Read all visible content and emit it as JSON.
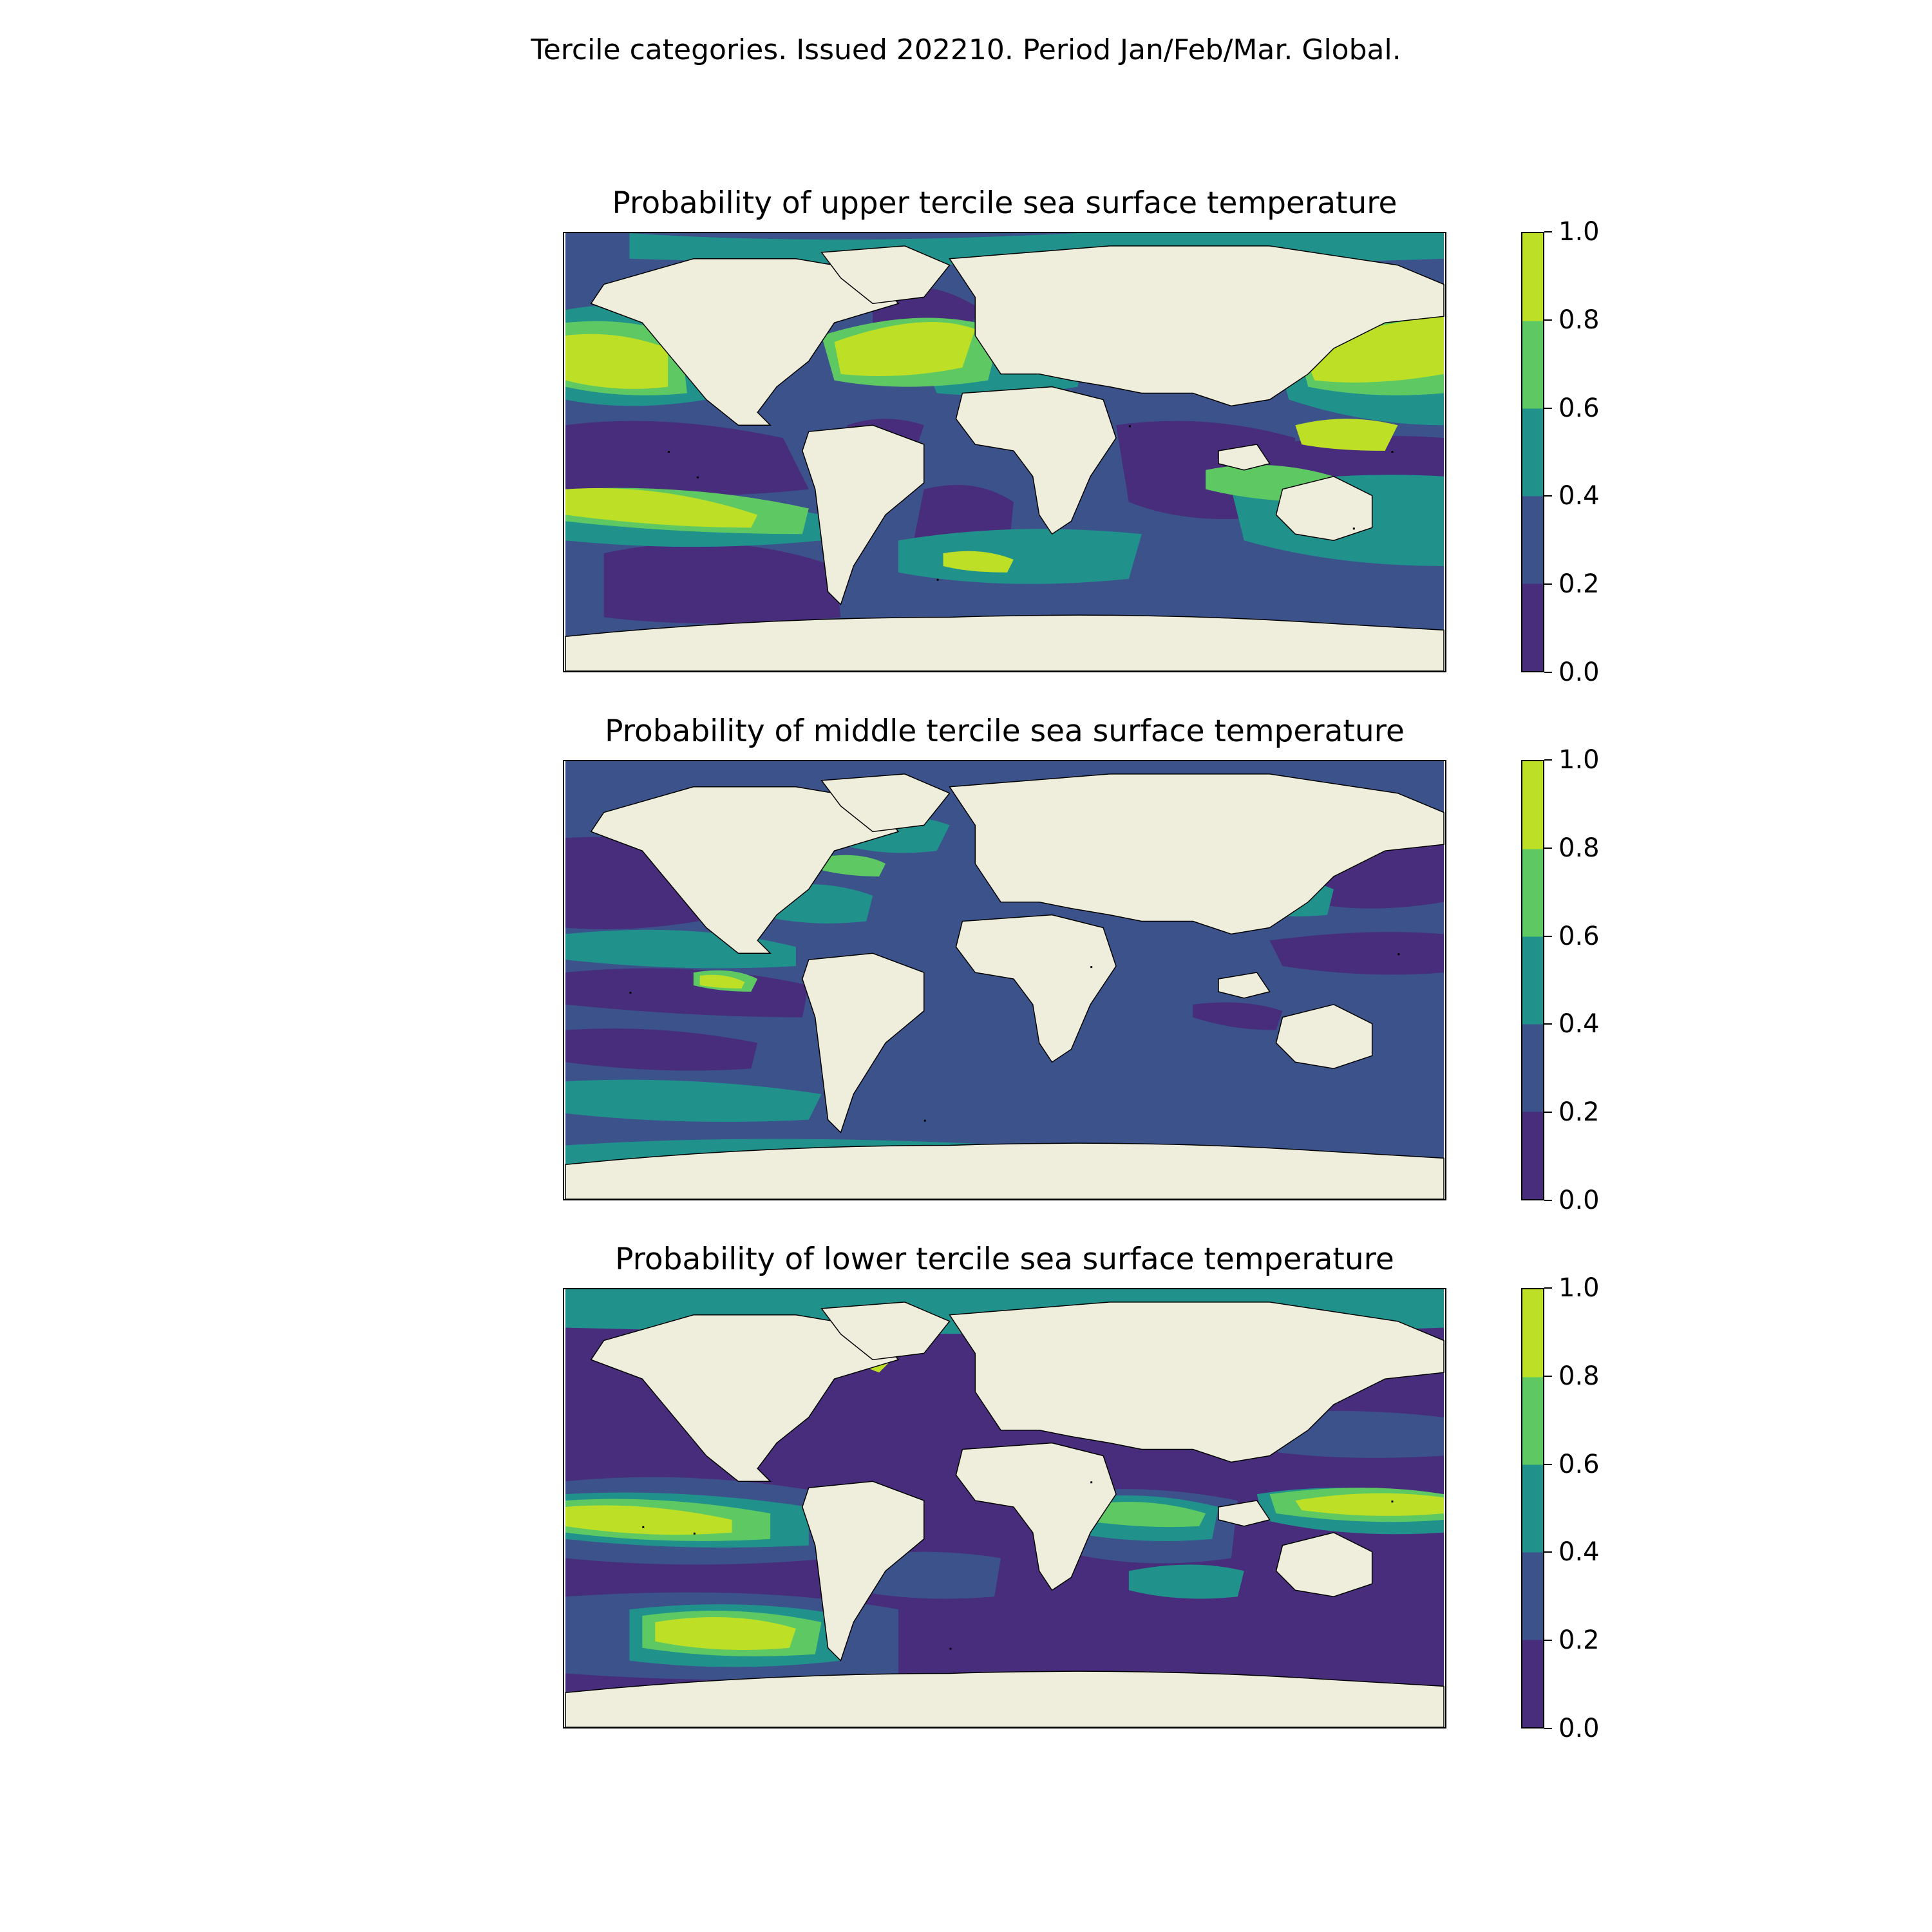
{
  "suptitle": "Tercile categories. Issued 202210. Period Jan/Feb/Mar. Global.",
  "colorbar": {
    "ticks": [
      "0.0",
      "0.2",
      "0.4",
      "0.6",
      "0.8",
      "1.0"
    ],
    "levels": [
      0.0,
      0.2,
      0.4,
      0.6,
      0.8,
      1.0
    ],
    "colors": [
      "#472d7b",
      "#3b528b",
      "#21918c",
      "#5ec962",
      "#bddf26"
    ]
  },
  "colors": {
    "land": "#efeedd",
    "coast": "#000000"
  },
  "panels": [
    {
      "id": "upper",
      "title": "Probability of upper tercile sea surface temperature"
    },
    {
      "id": "middle",
      "title": "Probability of middle tercile sea surface temperature"
    },
    {
      "id": "lower",
      "title": "Probability of lower tercile sea surface temperature"
    }
  ]
}
